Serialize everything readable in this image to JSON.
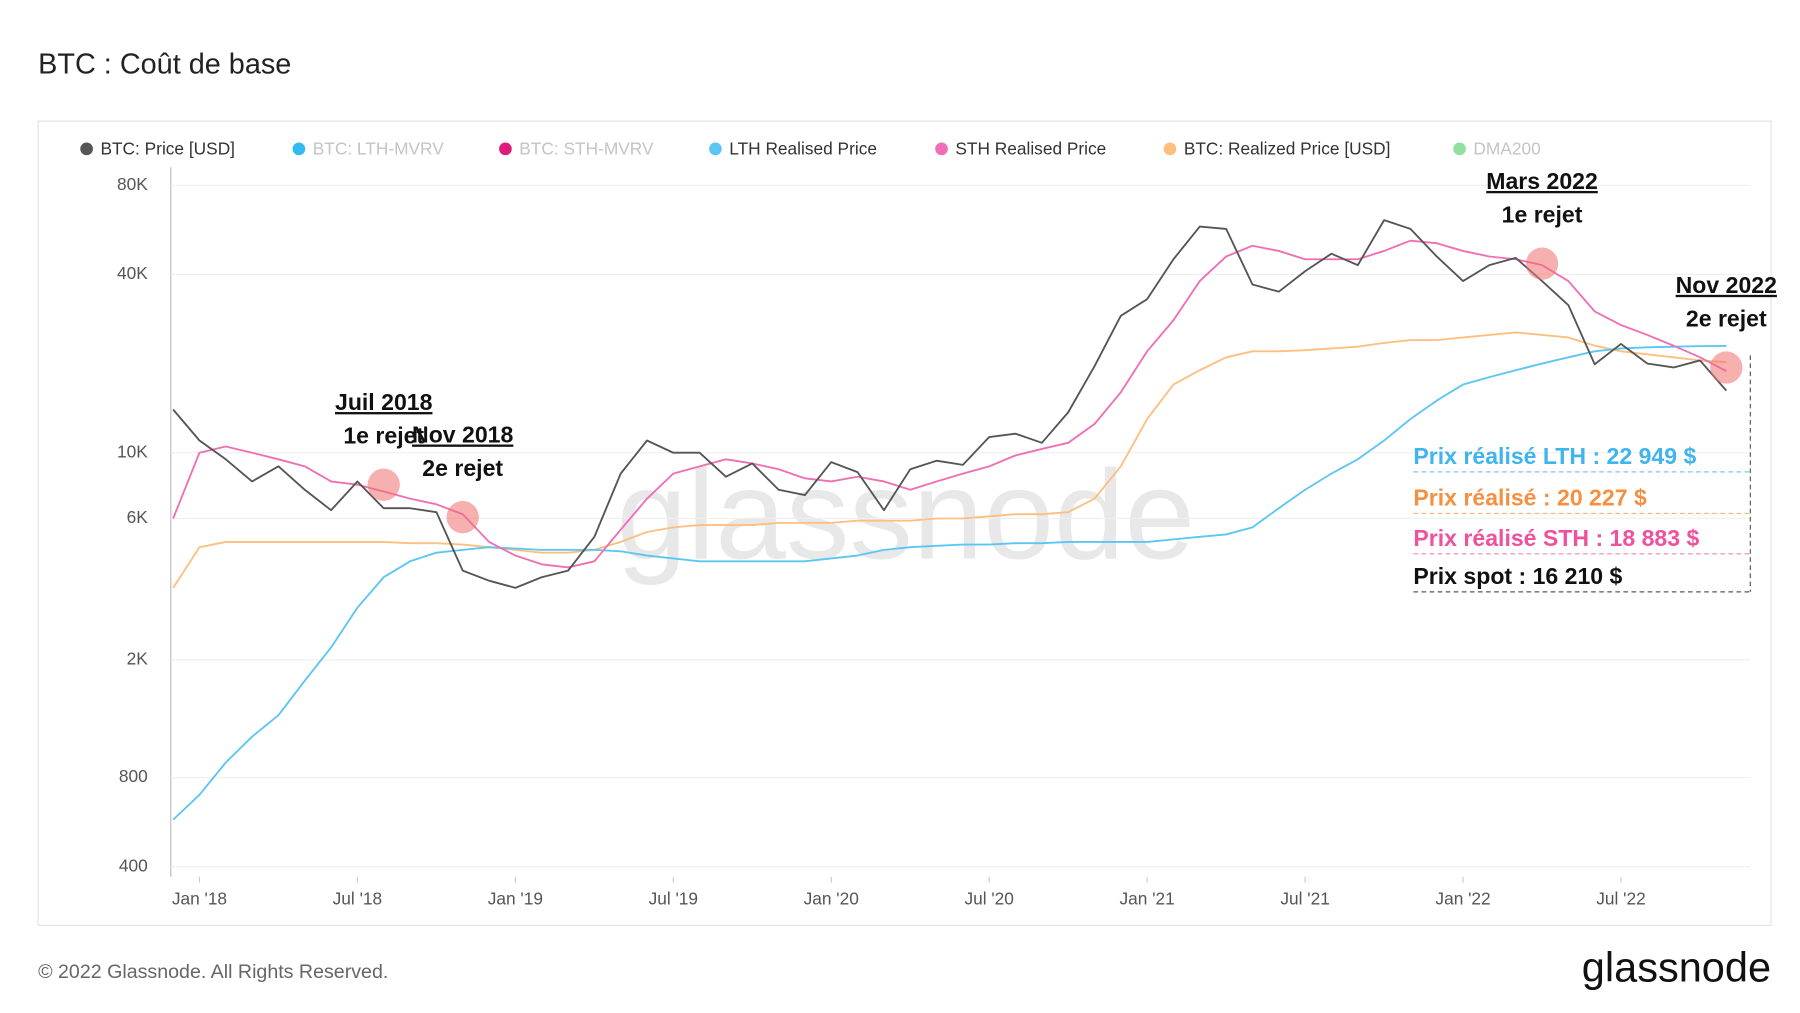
{
  "chart_data": {
    "type": "line",
    "title": "BTC : Coût de base",
    "footer": "© 2022 Glassnode. All Rights Reserved.",
    "logo": "glassnode",
    "watermark": "glassnode",
    "log_scale": true,
    "grid": true,
    "xlim": [
      "2017-12",
      "2022-12"
    ],
    "ylim": [
      370,
      92000
    ],
    "yticks": [
      400,
      800,
      {
        "value": 2000,
        "label": "2K"
      },
      {
        "value": 6000,
        "label": "6K"
      },
      {
        "value": 10000,
        "label": "10K"
      },
      {
        "value": 40000,
        "label": "40K"
      },
      {
        "value": 80000,
        "label": "80K"
      }
    ],
    "xticks": [
      {
        "value": "2018-01",
        "label": "Jan '18"
      },
      {
        "value": "2018-07",
        "label": "Jul '18"
      },
      {
        "value": "2019-01",
        "label": "Jan '19"
      },
      {
        "value": "2019-07",
        "label": "Jul '19"
      },
      {
        "value": "2020-01",
        "label": "Jan '20"
      },
      {
        "value": "2020-07",
        "label": "Jul '20"
      },
      {
        "value": "2021-01",
        "label": "Jan '21"
      },
      {
        "value": "2021-07",
        "label": "Jul '21"
      },
      {
        "value": "2022-01",
        "label": "Jan '22"
      },
      {
        "value": "2022-07",
        "label": "Jul '22"
      }
    ],
    "x": [
      "2017-12",
      "2018-01",
      "2018-02",
      "2018-03",
      "2018-04",
      "2018-05",
      "2018-06",
      "2018-07",
      "2018-08",
      "2018-09",
      "2018-10",
      "2018-11",
      "2018-12",
      "2019-01",
      "2019-02",
      "2019-03",
      "2019-04",
      "2019-05",
      "2019-06",
      "2019-07",
      "2019-08",
      "2019-09",
      "2019-10",
      "2019-11",
      "2019-12",
      "2020-01",
      "2020-02",
      "2020-03",
      "2020-04",
      "2020-05",
      "2020-06",
      "2020-07",
      "2020-08",
      "2020-09",
      "2020-10",
      "2020-11",
      "2020-12",
      "2021-01",
      "2021-02",
      "2021-03",
      "2021-04",
      "2021-05",
      "2021-06",
      "2021-07",
      "2021-08",
      "2021-09",
      "2021-10",
      "2021-11",
      "2021-12",
      "2022-01",
      "2022-02",
      "2022-03",
      "2022-04",
      "2022-05",
      "2022-06",
      "2022-07",
      "2022-08",
      "2022-09",
      "2022-10",
      "2022-11"
    ],
    "series": [
      {
        "name": "BTC: Price [USD]",
        "color": "#555555",
        "width": 1.6,
        "values": [
          14000,
          11000,
          9500,
          8000,
          9000,
          7500,
          6400,
          8000,
          6500,
          6500,
          6300,
          4000,
          3700,
          3500,
          3800,
          4000,
          5200,
          8500,
          11000,
          10000,
          10000,
          8300,
          9200,
          7500,
          7200,
          9300,
          8600,
          6400,
          8800,
          9400,
          9100,
          11300,
          11600,
          10800,
          13700,
          19600,
          29000,
          33000,
          45000,
          58000,
          57000,
          37000,
          35000,
          41000,
          47000,
          43000,
          61000,
          57000,
          46000,
          38000,
          43000,
          45500,
          38000,
          31500,
          19900,
          23300,
          20000,
          19400,
          20500,
          16210
        ]
      },
      {
        "name": "LTH Realised Price",
        "color": "#5bc6f3",
        "width": 1.6,
        "values": [
          577,
          700,
          900,
          1100,
          1300,
          1700,
          2200,
          3000,
          3800,
          4300,
          4600,
          4700,
          4800,
          4750,
          4700,
          4700,
          4700,
          4650,
          4500,
          4400,
          4300,
          4300,
          4300,
          4300,
          4300,
          4400,
          4500,
          4700,
          4800,
          4850,
          4900,
          4900,
          4950,
          4950,
          5000,
          5000,
          5000,
          5000,
          5100,
          5200,
          5300,
          5600,
          6500,
          7500,
          8500,
          9500,
          11000,
          13000,
          15000,
          17000,
          18000,
          19000,
          20000,
          21000,
          22000,
          22500,
          22700,
          22800,
          22900,
          22949
        ]
      },
      {
        "name": "STH Realised Price",
        "color": "#f06eb4",
        "width": 1.6,
        "values": [
          6000,
          10000,
          10500,
          10000,
          9500,
          9000,
          8000,
          7800,
          7400,
          7000,
          6700,
          6200,
          5000,
          4500,
          4200,
          4100,
          4300,
          5500,
          7000,
          8500,
          9000,
          9500,
          9200,
          8800,
          8200,
          8000,
          8300,
          8000,
          7500,
          8000,
          8500,
          9000,
          9800,
          10300,
          10800,
          12500,
          16000,
          22000,
          28000,
          38000,
          46000,
          50000,
          48000,
          45000,
          45000,
          45000,
          48000,
          52000,
          51000,
          48000,
          46000,
          45000,
          43000,
          38000,
          30000,
          27000,
          25000,
          23000,
          21000,
          18883
        ]
      },
      {
        "name": "BTC: Realized Price [USD]",
        "color": "#fdbf80",
        "width": 1.6,
        "values": [
          3500,
          4800,
          5000,
          5000,
          5000,
          5000,
          5000,
          5000,
          5000,
          4950,
          4950,
          4900,
          4800,
          4700,
          4600,
          4600,
          4700,
          5000,
          5400,
          5600,
          5700,
          5700,
          5700,
          5800,
          5800,
          5800,
          5900,
          5900,
          5900,
          6000,
          6000,
          6100,
          6200,
          6200,
          6300,
          7000,
          9000,
          13000,
          17000,
          19000,
          21000,
          22000,
          22000,
          22200,
          22500,
          22800,
          23500,
          24000,
          24000,
          24500,
          25000,
          25500,
          25000,
          24500,
          23000,
          22000,
          21500,
          21000,
          20500,
          20227
        ]
      }
    ],
    "hidden_series": [
      {
        "name": "BTC: LTH-MVRV",
        "color": "#33bbf0"
      },
      {
        "name": "BTC: STH-MVRV",
        "color": "#e0197a"
      },
      {
        "name": "DMA200",
        "color": "#90e0a0"
      }
    ],
    "annotations": [
      {
        "title": "Juil 2018",
        "text": "1e rejet",
        "x": "2018-08",
        "y": 7800
      },
      {
        "title": "Nov 2018",
        "text": "2e rejet",
        "x": "2018-11",
        "y": 6060
      },
      {
        "title": "Mars 2022",
        "text": "1e rejet",
        "x": "2022-04",
        "y": 43500
      },
      {
        "title": "Nov 2022",
        "text": "2e rejet",
        "x": "2022-11",
        "y": 19400
      }
    ],
    "price_labels": [
      {
        "text": "Prix réalisé LTH : 22 949 $",
        "color": "#3fb4ee"
      },
      {
        "text": "Prix réalisé : 20 227 $",
        "color": "#f59042"
      },
      {
        "text": "Prix réalisé STH : 18 883 $",
        "color": "#f0509e"
      },
      {
        "text": "Prix spot : 16 210 $",
        "color": "#111111"
      }
    ]
  }
}
